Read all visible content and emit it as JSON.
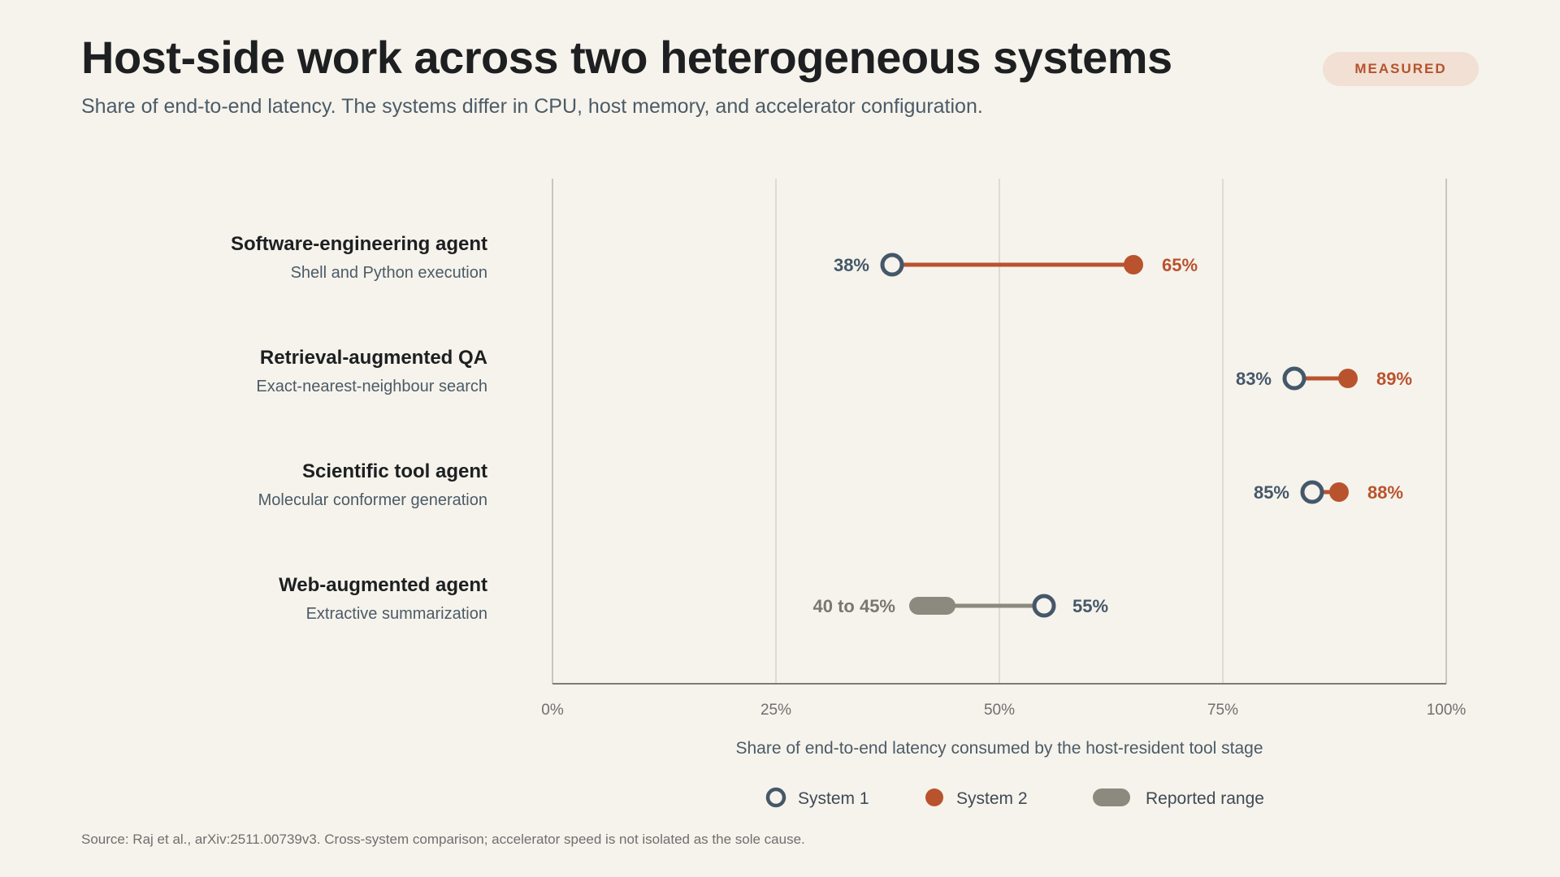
{
  "header": {
    "title": "Host-side work across two heterogeneous systems",
    "subtitle": "Share of end-to-end latency. The systems differ in CPU, host memory, and accelerator configuration.",
    "badge": "MEASURED"
  },
  "chart_data": {
    "type": "dumbbell",
    "xlabel": "Share of end-to-end latency consumed by the host-resident tool stage",
    "xlim": [
      0,
      100
    ],
    "xticks": [
      0,
      25,
      50,
      75,
      100
    ],
    "xtick_labels": [
      "0%",
      "25%",
      "50%",
      "75%",
      "100%"
    ],
    "grid": true,
    "colors": {
      "system1": "#44586a",
      "system2": "#b9532e",
      "range": "#8c8a7e"
    },
    "legend": {
      "placement": "bottom-center",
      "items": [
        {
          "key": "system1",
          "label": "System 1"
        },
        {
          "key": "system2",
          "label": "System 2"
        },
        {
          "key": "range",
          "label": "Reported range"
        }
      ]
    },
    "rows": [
      {
        "label": "Software-engineering agent",
        "sublabel": "Shell and Python execution",
        "system1": 38,
        "system1_label": "38%",
        "system2": 65,
        "system2_label": "65%"
      },
      {
        "label": "Retrieval-augmented QA",
        "sublabel": "Exact-nearest-neighbour search",
        "system1": 83,
        "system1_label": "83%",
        "system2": 89,
        "system2_label": "89%"
      },
      {
        "label": "Scientific tool agent",
        "sublabel": "Molecular conformer generation",
        "system1": 85,
        "system1_label": "85%",
        "system2": 88,
        "system2_label": "88%"
      },
      {
        "label": "Web-augmented agent",
        "sublabel": "Extractive summarization",
        "range": [
          40,
          45
        ],
        "range_label": "40 to 45%",
        "system1": 55,
        "system1_label": "55%"
      }
    ]
  },
  "footer": {
    "source": "Source: Raj et al., arXiv:2511.00739v3. Cross-system comparison; accelerator speed is not isolated as the sole cause."
  }
}
